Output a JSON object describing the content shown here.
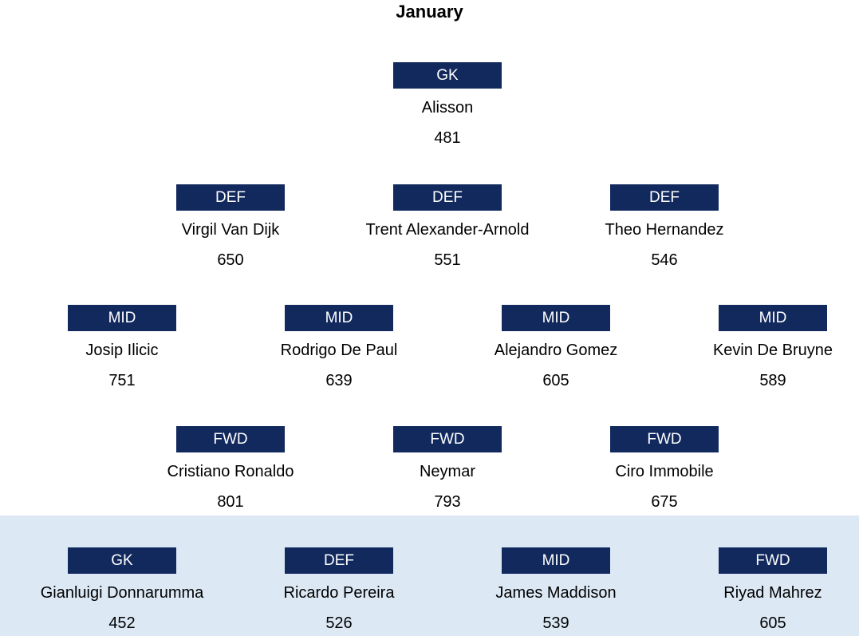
{
  "title": "January",
  "colors": {
    "position_box": "#12295E",
    "position_box_text": "#FFFFFF",
    "bench_background": "#DCE9F5",
    "text": "#000000"
  },
  "formation": {
    "rows": [
      {
        "players": [
          {
            "position": "GK",
            "name": "Alisson",
            "value": "481"
          }
        ]
      },
      {
        "players": [
          {
            "position": "DEF",
            "name": "Virgil Van Dijk",
            "value": "650"
          },
          {
            "position": "DEF",
            "name": "Trent Alexander-Arnold",
            "value": "551"
          },
          {
            "position": "DEF",
            "name": "Theo Hernandez",
            "value": "546"
          }
        ]
      },
      {
        "players": [
          {
            "position": "MID",
            "name": "Josip Ilicic",
            "value": "751"
          },
          {
            "position": "MID",
            "name": "Rodrigo De Paul",
            "value": "639"
          },
          {
            "position": "MID",
            "name": "Alejandro Gomez",
            "value": "605"
          },
          {
            "position": "MID",
            "name": "Kevin De Bruyne",
            "value": "589"
          }
        ]
      },
      {
        "players": [
          {
            "position": "FWD",
            "name": "Cristiano Ronaldo",
            "value": "801"
          },
          {
            "position": "FWD",
            "name": "Neymar",
            "value": "793"
          },
          {
            "position": "FWD",
            "name": "Ciro Immobile",
            "value": "675"
          }
        ]
      },
      {
        "players": [
          {
            "position": "GK",
            "name": "Gianluigi Donnarumma",
            "value": "452"
          },
          {
            "position": "DEF",
            "name": "Ricardo Pereira",
            "value": "526"
          },
          {
            "position": "MID",
            "name": "James Maddison",
            "value": "539"
          },
          {
            "position": "FWD",
            "name": "Riyad Mahrez",
            "value": "605"
          }
        ]
      }
    ]
  }
}
